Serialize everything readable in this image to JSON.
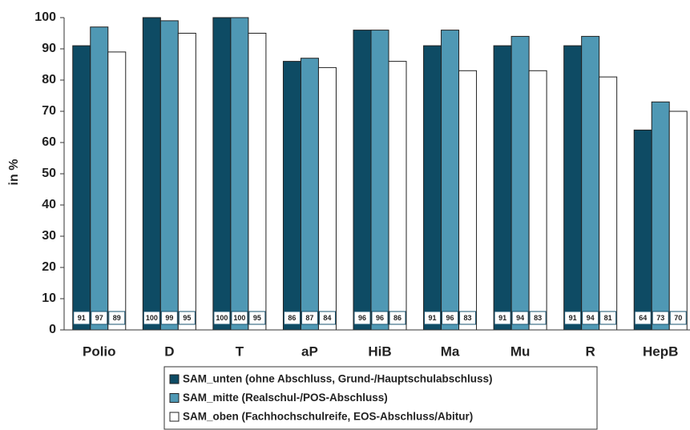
{
  "chart_data": {
    "type": "bar",
    "y_label": "in %",
    "categories": [
      "Polio",
      "D",
      "T",
      "aP",
      "HiB",
      "Ma",
      "Mu",
      "R",
      "HepB"
    ],
    "series": [
      {
        "name": "SAM_unten (ohne Abschluss, Grund-/Hauptschulabschluss)",
        "color": "#0e4b64",
        "values": [
          91,
          100,
          100,
          86,
          96,
          91,
          91,
          91,
          64
        ]
      },
      {
        "name": "SAM_mitte (Realschul-/POS-Abschluss)",
        "color": "#4f98b4",
        "values": [
          97,
          99,
          100,
          87,
          96,
          96,
          94,
          94,
          73
        ]
      },
      {
        "name": "SAM_oben (Fachhochschulreife, EOS-Abschluss/Abitur)",
        "color": "#ffffff",
        "values": [
          89,
          95,
          95,
          84,
          86,
          83,
          83,
          81,
          70
        ]
      }
    ],
    "ylim": [
      0,
      100
    ],
    "yticks": [
      0,
      10,
      20,
      30,
      40,
      50,
      60,
      70,
      80,
      90,
      100
    ],
    "grid": false,
    "legend_position": "bottom"
  }
}
